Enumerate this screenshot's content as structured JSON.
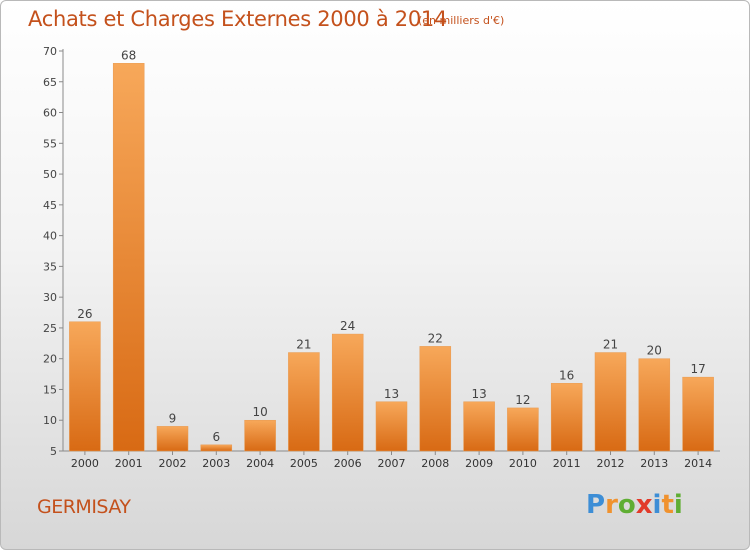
{
  "title": "Achats et Charges Externes 2000 à 2014",
  "unit": "(en milliers d'€)",
  "place": "GERMISAY",
  "logo": {
    "letters": [
      "P",
      "r",
      "o",
      "x",
      "i",
      "t",
      "i"
    ],
    "colors": [
      "#3d8ed6",
      "#f0922e",
      "#5fae33",
      "#e23a2a",
      "#3d8ed6",
      "#f0922e",
      "#5fae33"
    ]
  },
  "colors": {
    "accent": "#c4511c",
    "bar_light": "#f7a85a",
    "bar_dark": "#d86a14",
    "axis": "#8a8a8a",
    "grid": "#c8c8c8"
  },
  "chart_data": {
    "type": "bar",
    "categories": [
      "2000",
      "2001",
      "2002",
      "2003",
      "2004",
      "2005",
      "2006",
      "2007",
      "2008",
      "2009",
      "2010",
      "2011",
      "2012",
      "2013",
      "2014"
    ],
    "values": [
      26,
      68,
      9,
      6,
      10,
      21,
      24,
      13,
      22,
      13,
      12,
      16,
      21,
      20,
      17
    ],
    "title": "Achats et Charges Externes 2000 à 2014",
    "ylim": [
      5,
      70
    ],
    "yticks": [
      5,
      10,
      15,
      20,
      25,
      30,
      35,
      40,
      45,
      50,
      55,
      60,
      65,
      70
    ],
    "grid": false,
    "data_labels": true
  }
}
